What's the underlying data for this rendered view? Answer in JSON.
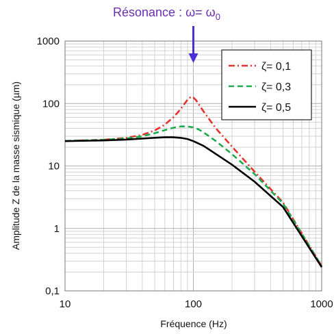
{
  "chart_data": {
    "type": "line",
    "x_scale": "log",
    "y_scale": "log",
    "xlim": [
      10,
      1000
    ],
    "ylim": [
      0.1,
      1000
    ],
    "x_ticks": [
      "10",
      "100",
      "1000"
    ],
    "y_ticks": [
      "0,1",
      "1",
      "10",
      "100",
      "1000"
    ],
    "xlabel": "Fréquence (Hz)",
    "ylabel": "Amplitude Z de la masse sismique (µm)",
    "grid": true,
    "legend_position": "top-right",
    "annotation": {
      "text_main": "Résonance : ω= ω",
      "text_sub": "0",
      "x": 100,
      "color": "#6a2fb0"
    },
    "series": [
      {
        "name": "ζ= 0,1",
        "style": "dash-dot",
        "color": "#e8302a",
        "x": [
          10,
          20,
          30,
          40,
          50,
          60,
          70,
          80,
          90,
          95,
          100,
          105,
          110,
          120,
          150,
          200,
          300,
          500,
          1000
        ],
        "y": [
          25.2,
          26.3,
          28.2,
          31.5,
          37.0,
          46.0,
          60.5,
          82.0,
          115.0,
          126.0,
          125.0,
          113.0,
          98.0,
          75.0,
          40.0,
          20.5,
          8.1,
          2.6,
          0.25
        ]
      },
      {
        "name": "ζ= 0,3",
        "style": "dashed",
        "color": "#1aab4c",
        "x": [
          10,
          20,
          30,
          40,
          50,
          60,
          70,
          80,
          90,
          100,
          110,
          120,
          150,
          200,
          300,
          500,
          1000
        ],
        "y": [
          25.2,
          26.2,
          27.6,
          30.0,
          33.5,
          37.5,
          41.0,
          43.0,
          43.0,
          41.5,
          38.5,
          34.5,
          25.0,
          15.5,
          7.4,
          2.5,
          0.25
        ]
      },
      {
        "name": "ζ= 0,5",
        "style": "solid",
        "color": "#000000",
        "x": [
          10,
          20,
          30,
          40,
          50,
          60,
          70,
          80,
          90,
          100,
          120,
          150,
          200,
          300,
          500,
          1000
        ],
        "y": [
          25.0,
          25.6,
          26.5,
          27.5,
          28.3,
          28.8,
          28.8,
          28.2,
          27.0,
          25.0,
          21.0,
          15.5,
          10.5,
          5.6,
          2.2,
          0.24
        ]
      }
    ]
  }
}
